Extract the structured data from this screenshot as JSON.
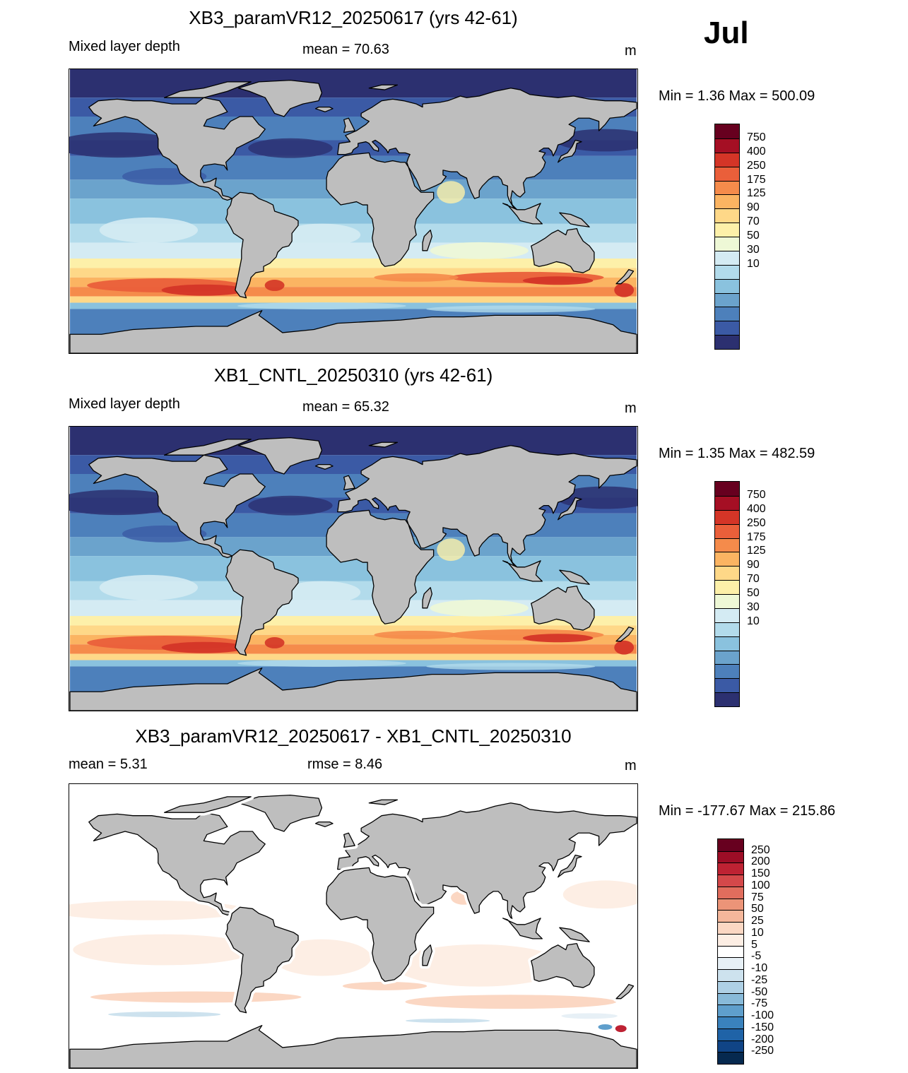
{
  "month": "Jul",
  "land_color": "#bebebe",
  "panels": [
    {
      "id": "top",
      "title": "XB3_paramVR12_20250617 (yrs 42-61)",
      "left_label": "Mixed layer depth",
      "center_label": "mean =  70.63",
      "units": "m",
      "minmax": "Min =    1.36 Max = 500.09",
      "colorbar": "abs",
      "variant": 0
    },
    {
      "id": "middle",
      "title": "XB1_CNTL_20250310 (yrs 42-61)",
      "left_label": "Mixed layer depth",
      "center_label": "mean =  65.32",
      "units": "m",
      "minmax": "Min =    1.35 Max = 482.59",
      "colorbar": "abs",
      "variant": 1
    },
    {
      "id": "bottom",
      "title": "XB3_paramVR12_20250617 - XB1_CNTL_20250310",
      "left_label": "mean =   5.31",
      "center_label": "rmse =   8.46",
      "units": "m",
      "minmax": "Min = -177.67 Max = 215.86",
      "colorbar": "diff",
      "variant": 2
    }
  ],
  "colorbars": {
    "abs": {
      "labels": [
        "750",
        "400",
        "250",
        "175",
        "125",
        "90",
        "70",
        "50",
        "30",
        "10"
      ],
      "colors": [
        "#67001f",
        "#a50f24",
        "#d43527",
        "#ea5f3a",
        "#f58b4b",
        "#fbb462",
        "#fed888",
        "#fdf0a9",
        "#eef8d6",
        "#d4ebf3",
        "#b2dbeb",
        "#8ac2de",
        "#6ba3cc",
        "#4d80bb",
        "#3b5aa5",
        "#2c3070"
      ]
    },
    "diff": {
      "labels": [
        "250",
        "200",
        "150",
        "100",
        "75",
        "50",
        "25",
        "10",
        "5",
        "-5",
        "-10",
        "-25",
        "-50",
        "-75",
        "-100",
        "-150",
        "-200",
        "-250"
      ],
      "colors": [
        "#67001f",
        "#9d0d26",
        "#be2233",
        "#d4484a",
        "#e16d5d",
        "#ec9478",
        "#f5b79b",
        "#fbd7c3",
        "#fdeee4",
        "#ffffff",
        "#e7f0f6",
        "#cde2ee",
        "#aed0e5",
        "#88bad9",
        "#5f9fcc",
        "#3a82bd",
        "#1f63a7",
        "#104486",
        "#06294f"
      ]
    }
  }
}
